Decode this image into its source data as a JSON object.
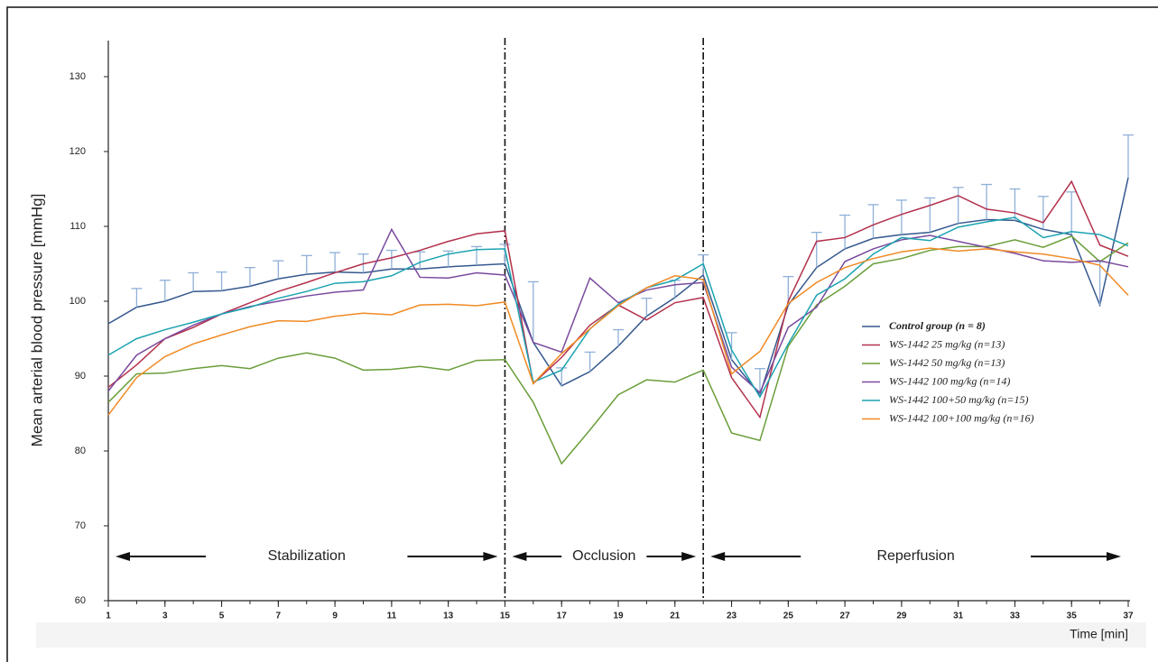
{
  "chart_data": {
    "type": "line",
    "y_label": "Mean arterial blood pressure [mmHg]",
    "x_label": "Time [min]",
    "x": [
      1,
      2,
      3,
      4,
      5,
      6,
      7,
      8,
      9,
      10,
      11,
      12,
      13,
      14,
      15,
      16,
      17,
      18,
      19,
      20,
      21,
      22,
      23,
      24,
      25,
      26,
      27,
      28,
      29,
      30,
      31,
      32,
      33,
      34,
      35,
      36,
      37
    ],
    "xlim": [
      1,
      37
    ],
    "xticks": [
      1,
      3,
      5,
      7,
      9,
      11,
      13,
      15,
      17,
      19,
      21,
      23,
      25,
      27,
      29,
      31,
      33,
      35,
      37
    ],
    "ylim": [
      60,
      130
    ],
    "yticks": [
      60,
      70,
      80,
      90,
      100,
      110,
      120,
      130
    ],
    "dividers": [
      15,
      22
    ],
    "phases": [
      "Stabilization",
      "Occlusion",
      "Reperfusion"
    ],
    "legend": "right",
    "series": [
      {
        "name": "Control group (n = 8)",
        "color": "#34588e",
        "values": [
          97,
          99.2,
          100,
          101.3,
          101.4,
          102,
          103,
          103.6,
          103.9,
          103.8,
          104.3,
          104.3,
          104.6,
          104.8,
          105,
          94.5,
          88.7,
          90.6,
          94,
          98,
          100.5,
          103.5,
          92.2,
          87.5,
          99.5,
          104.5,
          107,
          108.4,
          108.9,
          109.2,
          110.4,
          110.9,
          110.8,
          109.6,
          108.9,
          99.5,
          116.5
        ],
        "errors": [
          null,
          2.5,
          2.8,
          2.5,
          2.5,
          2.5,
          2.4,
          2.5,
          2.6,
          2.5,
          2.5,
          2.3,
          2.1,
          2.5,
          2.6,
          8.1,
          2.4,
          2.6,
          2.2,
          2.4,
          2.3,
          2.7,
          3.6,
          3.5,
          3.8,
          4.7,
          4.5,
          4.5,
          4.6,
          4.6,
          4.8,
          4.7,
          4.2,
          4.4,
          5.7,
          5.8,
          5.7
        ]
      },
      {
        "name": "WS-1442   25 mg/kg (n=13)",
        "color": "#b3304c",
        "values": [
          88.5,
          91.5,
          95,
          96.5,
          98.3,
          99.8,
          101.3,
          102.5,
          103.8,
          105,
          105.8,
          106.8,
          108,
          109,
          109.4,
          89,
          92.5,
          96.8,
          99.5,
          97.5,
          99.8,
          100.5,
          89.8,
          84.5,
          100,
          108,
          108.5,
          110.2,
          111.6,
          112.8,
          114.1,
          112.3,
          111.8,
          110.5,
          116,
          107.5,
          106
        ]
      },
      {
        "name": "WS-1442   50 mg/kg (n=13)",
        "color": "#6a9e3a",
        "values": [
          86.5,
          90.3,
          90.4,
          91,
          91.4,
          91,
          92.4,
          93.1,
          92.4,
          90.8,
          90.9,
          91.3,
          90.8,
          92.1,
          92.2,
          86.5,
          78.3,
          82.8,
          87.5,
          89.5,
          89.2,
          90.8,
          82.4,
          81.4,
          94,
          99.5,
          102,
          105,
          105.7,
          106.8,
          107.3,
          107.3,
          108.2,
          107.2,
          108.7,
          105.3,
          107.8
        ]
      },
      {
        "name": "WS-1442   100 mg/kg (n=14)",
        "color": "#7a4a9e",
        "values": [
          88,
          92.8,
          95,
          96.8,
          98.3,
          99.3,
          100,
          100.7,
          101.2,
          101.5,
          109.6,
          103.2,
          103.1,
          103.8,
          103.5,
          94.5,
          93.2,
          103.1,
          99.8,
          101.5,
          102.2,
          102.5,
          91.2,
          87.8,
          96.5,
          99.2,
          105.3,
          107,
          108.2,
          108.8,
          108,
          107.2,
          106.4,
          105.4,
          105.2,
          105.4,
          104.6
        ]
      },
      {
        "name": "WS-1442   100+50 mg/kg (n=15)",
        "color": "#1ca3b0",
        "values": [
          92.8,
          95,
          96.2,
          97.2,
          98.3,
          99.2,
          100.4,
          101.3,
          102.4,
          102.6,
          103.4,
          105.2,
          106.3,
          106.9,
          107,
          89.2,
          90.8,
          96.3,
          99.6,
          101.8,
          102.8,
          105,
          93.5,
          87.2,
          94.3,
          100.8,
          103,
          106.3,
          108.5,
          108.1,
          109.9,
          110.6,
          111.2,
          108.5,
          109.3,
          108.9,
          107.4
        ]
      },
      {
        "name": "WS-1442   100+100 mg/kg (n=16)",
        "color": "#f08a24",
        "values": [
          84.8,
          89.8,
          92.6,
          94.3,
          95.5,
          96.6,
          97.4,
          97.3,
          98,
          98.4,
          98.2,
          99.5,
          99.6,
          99.4,
          99.9,
          89,
          93,
          96.3,
          99.4,
          101.8,
          103.4,
          102.9,
          90.3,
          93.3,
          99.7,
          102.5,
          104.5,
          105.7,
          106.6,
          107.1,
          106.7,
          107,
          106.6,
          106.3,
          105.7,
          104.8,
          100.8
        ]
      }
    ]
  }
}
